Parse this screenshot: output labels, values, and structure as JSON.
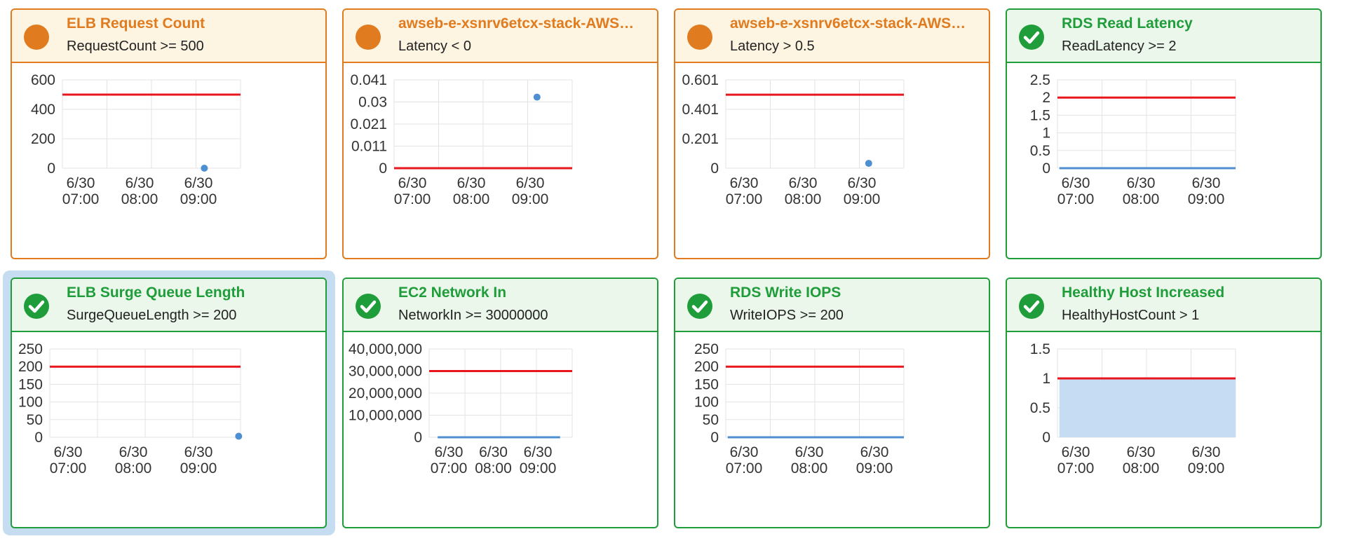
{
  "colors": {
    "alarm": "#e07b1f",
    "ok": "#1f9d3a",
    "threshold": "#e8161d",
    "series": "#4d8fd0",
    "area_fill": "#c5dcf2",
    "grid": "#e3e3e3",
    "selection": "#c6dcf0"
  },
  "x_ticks": [
    {
      "date": "6/30",
      "time": "07:00"
    },
    {
      "date": "6/30",
      "time": "08:00"
    },
    {
      "date": "6/30",
      "time": "09:00"
    }
  ],
  "cards": [
    {
      "status": "alarm",
      "status_icon": "alarm-dot-icon",
      "title": "ELB Request Count",
      "condition": "RequestCount >= 500",
      "chart_data": {
        "type": "scatter",
        "yticks": [
          "600",
          "400",
          "200",
          "0"
        ],
        "ylim": [
          0,
          600
        ],
        "threshold": 500,
        "points": [
          {
            "x": "6/30 09:06",
            "y": 0
          }
        ],
        "line": null,
        "area": null
      }
    },
    {
      "status": "alarm",
      "status_icon": "alarm-dot-icon",
      "title": "awseb-e-xsnrv6etcx-stack-AWS…",
      "condition": "Latency < 0",
      "chart_data": {
        "type": "scatter",
        "yticks": [
          "0.041",
          "0.03",
          "0.021",
          "0.011",
          "0"
        ],
        "ylim": [
          0,
          0.041
        ],
        "threshold": 0,
        "points": [
          {
            "x": "6/30 09:07",
            "y": 0.033
          }
        ],
        "line": null,
        "area": null
      }
    },
    {
      "status": "alarm",
      "status_icon": "alarm-dot-icon",
      "title": "awseb-e-xsnrv6etcx-stack-AWS…",
      "condition": "Latency > 0.5",
      "chart_data": {
        "type": "scatter",
        "yticks": [
          "0.601",
          "0.401",
          "0.201",
          "0"
        ],
        "ylim": [
          0,
          0.601
        ],
        "threshold": 0.5,
        "points": [
          {
            "x": "6/30 09:07",
            "y": 0.033
          }
        ],
        "line": null,
        "area": null
      }
    },
    {
      "status": "ok",
      "status_icon": "check-circle-icon",
      "title": "RDS Read Latency",
      "condition": "ReadLatency >= 2",
      "chart_data": {
        "type": "line",
        "yticks": [
          "2.5",
          "2",
          "1.5",
          "1",
          "0.5",
          "0"
        ],
        "ylim": [
          0,
          2.5
        ],
        "threshold": 2,
        "points": [],
        "line": {
          "from": "6/30 06:45",
          "to": "6/30 09:36",
          "y": 0
        },
        "area": null
      }
    },
    {
      "status": "ok",
      "status_icon": "check-circle-icon",
      "title": "ELB Surge Queue Length",
      "condition": "SurgeQueueLength >= 200",
      "selected": true,
      "chart_data": {
        "type": "scatter",
        "yticks": [
          "250",
          "200",
          "150",
          "100",
          "50",
          "0"
        ],
        "ylim": [
          0,
          250
        ],
        "threshold": 200,
        "points": [
          {
            "x": "6/30 09:37",
            "y": 3
          }
        ],
        "line": null,
        "area": null
      }
    },
    {
      "status": "ok",
      "status_icon": "check-circle-icon",
      "title": "EC2 Network In",
      "condition": "NetworkIn >= 30000000",
      "chart_data": {
        "type": "line",
        "yticks": [
          "40,000,000",
          "30,000,000",
          "20,000,000",
          "10,000,000",
          "0"
        ],
        "ylim": [
          0,
          40000000
        ],
        "threshold": 30000000,
        "points": [],
        "line": {
          "from": "6/30 06:45",
          "to": "6/30 09:30",
          "y": 0
        },
        "area": null
      }
    },
    {
      "status": "ok",
      "status_icon": "check-circle-icon",
      "title": "RDS Write IOPS",
      "condition": "WriteIOPS >= 200",
      "chart_data": {
        "type": "line",
        "yticks": [
          "250",
          "200",
          "150",
          "100",
          "50",
          "0"
        ],
        "ylim": [
          0,
          250
        ],
        "threshold": 200,
        "points": [],
        "line": {
          "from": "6/30 06:45",
          "to": "6/30 09:36",
          "y": 0
        },
        "area": null
      }
    },
    {
      "status": "ok",
      "status_icon": "check-circle-icon",
      "title": "Healthy Host Increased",
      "condition": "HealthyHostCount > 1",
      "chart_data": {
        "type": "area",
        "yticks": [
          "1.5",
          "1",
          "0.5",
          "0"
        ],
        "ylim": [
          0,
          1.5
        ],
        "threshold": 1,
        "points": [],
        "line": null,
        "area": {
          "from": "6/30 06:45",
          "to": "6/30 09:36",
          "y": 1
        }
      }
    }
  ]
}
